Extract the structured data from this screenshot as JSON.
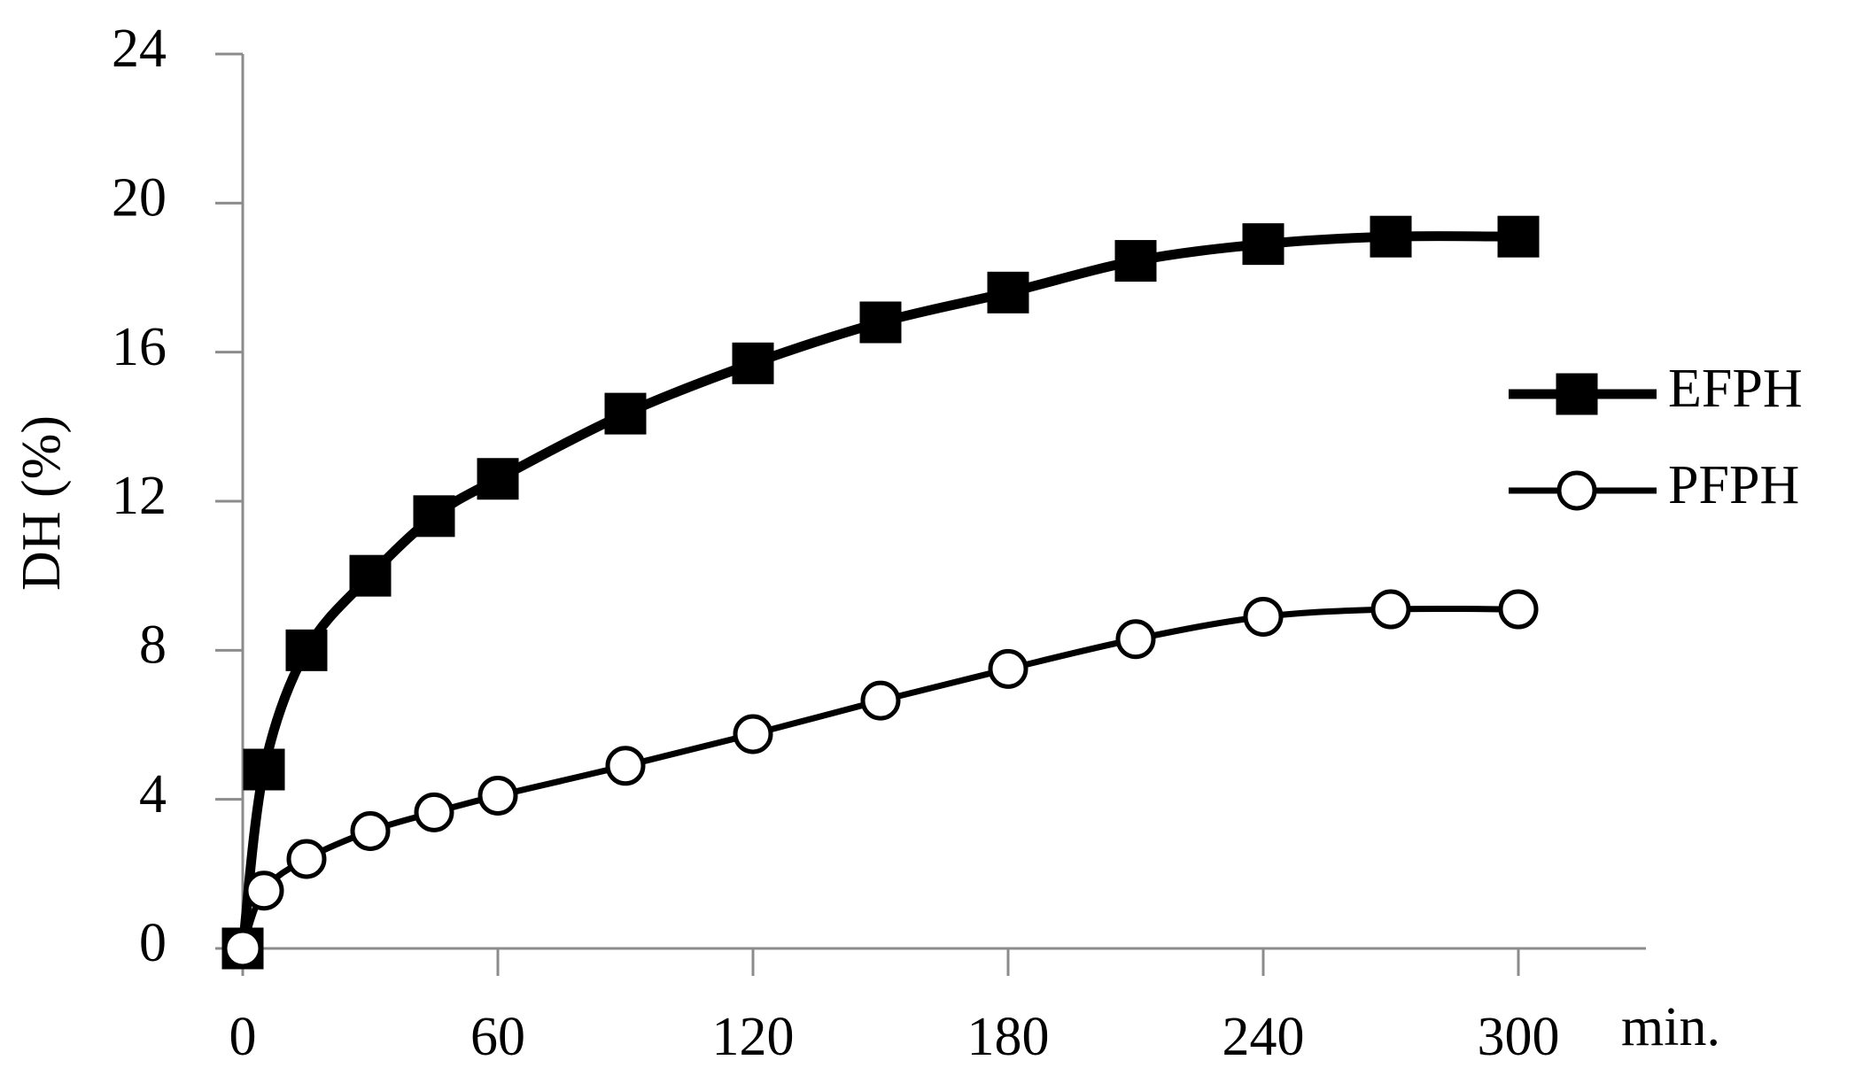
{
  "chart_data": {
    "type": "line",
    "x": [
      0,
      5,
      15,
      30,
      45,
      60,
      90,
      120,
      150,
      180,
      210,
      240,
      270,
      300
    ],
    "series": [
      {
        "name": "EFPH",
        "color": "#000000",
        "marker": "square",
        "values": [
          0,
          4.8,
          8.0,
          10.0,
          11.6,
          12.6,
          14.35,
          15.7,
          16.8,
          17.6,
          18.45,
          18.9,
          19.1,
          19.1
        ]
      },
      {
        "name": "PFPH",
        "color": "#000000",
        "marker": "circle",
        "values": [
          0,
          1.55,
          2.4,
          3.15,
          3.65,
          4.1,
          4.9,
          5.75,
          6.65,
          7.5,
          8.3,
          8.9,
          9.1,
          9.1
        ]
      }
    ],
    "y_label": "DH (%)",
    "x_label": "min.",
    "xlim": [
      0,
      330
    ],
    "xticks": [
      0,
      60,
      120,
      180,
      240,
      300
    ],
    "ylim": [
      0,
      24
    ],
    "yticks": [
      0,
      4,
      8,
      12,
      16,
      20,
      24
    ],
    "legend": "right",
    "grid": false
  }
}
